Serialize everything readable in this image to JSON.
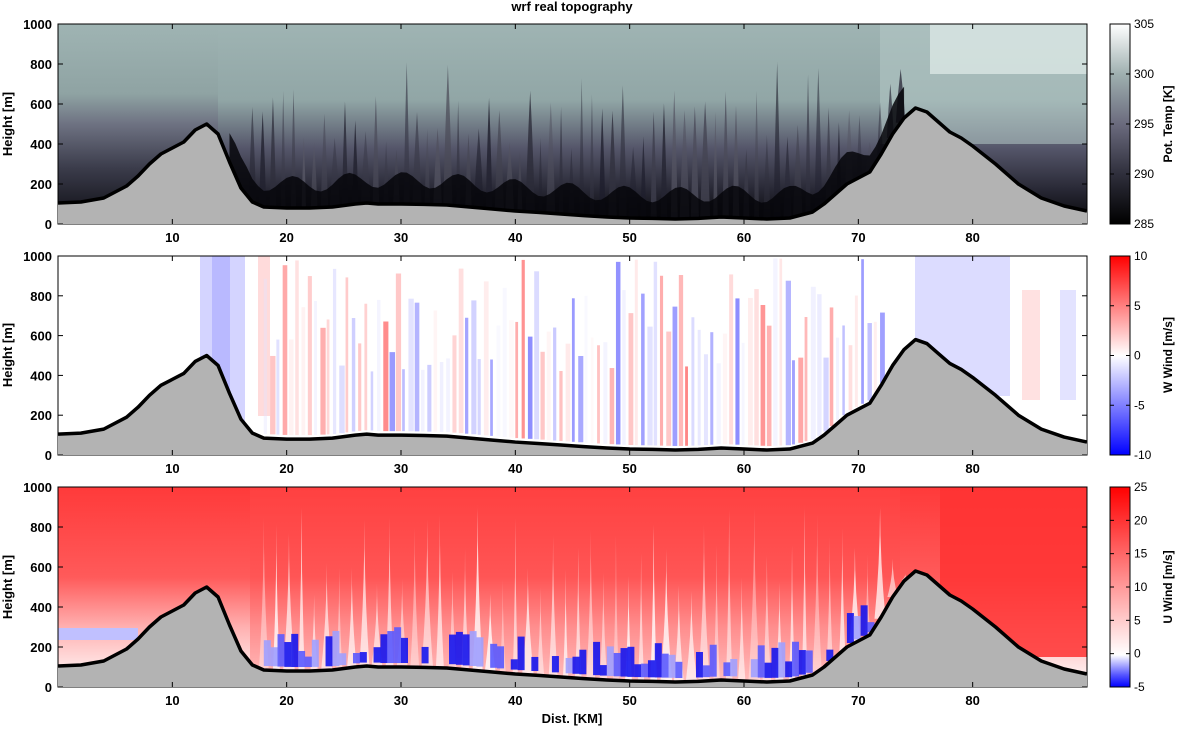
{
  "figure": {
    "title": "wrf real topography",
    "xlabel": "Dist. [KM]"
  },
  "chart_data": [
    {
      "type": "heatmap",
      "title": "wrf real topography",
      "xlabel": "",
      "ylabel": "Height [m]",
      "xlim": [
        0,
        90
      ],
      "ylim": [
        0,
        1000
      ],
      "xticks": [
        "10",
        "20",
        "30",
        "40",
        "50",
        "60",
        "70",
        "80"
      ],
      "yticks": [
        "0",
        "200",
        "400",
        "600",
        "800",
        "1000"
      ],
      "field": "potential_temperature",
      "colorbar": {
        "label": "Pot. Temp [K]",
        "range": [
          285,
          305
        ],
        "ticks": [
          "285",
          "290",
          "295",
          "300",
          "305"
        ],
        "colors": [
          "#000000",
          "#2f2f3c",
          "#6b6b7e",
          "#9fb0b0",
          "#ffffff"
        ]
      },
      "terrain": {
        "x": [
          0,
          2,
          4,
          6,
          7,
          8,
          9,
          10,
          11,
          12,
          13,
          14,
          15,
          16,
          17,
          18,
          20,
          22,
          24,
          26,
          27,
          28,
          30,
          32,
          34,
          36,
          38,
          40,
          42,
          44,
          46,
          48,
          50,
          52,
          54,
          56,
          58,
          60,
          62,
          64,
          66,
          67,
          68,
          69,
          70,
          71,
          72,
          73,
          74,
          75,
          76,
          77,
          78,
          79,
          80,
          82,
          84,
          86,
          88,
          90
        ],
        "height": [
          105,
          110,
          130,
          190,
          240,
          300,
          350,
          380,
          410,
          470,
          500,
          450,
          310,
          180,
          110,
          85,
          80,
          80,
          85,
          100,
          105,
          100,
          100,
          98,
          95,
          85,
          75,
          65,
          58,
          50,
          42,
          35,
          30,
          28,
          25,
          28,
          35,
          30,
          25,
          30,
          60,
          100,
          150,
          200,
          230,
          260,
          350,
          450,
          530,
          580,
          560,
          510,
          460,
          430,
          390,
          300,
          200,
          130,
          90,
          65
        ]
      }
    },
    {
      "type": "heatmap",
      "title": "",
      "xlabel": "",
      "ylabel": "Height [m]",
      "xlim": [
        0,
        90
      ],
      "ylim": [
        0,
        1000
      ],
      "xticks": [
        "10",
        "20",
        "30",
        "40",
        "50",
        "60",
        "70",
        "80"
      ],
      "yticks": [
        "0",
        "200",
        "400",
        "600",
        "800",
        "1000"
      ],
      "field": "w_wind",
      "colorbar": {
        "label": "W Wind [m/s]",
        "range": [
          -10,
          10
        ],
        "ticks": [
          "-10",
          "-5",
          "0",
          "5",
          "10"
        ],
        "colors": [
          "#0000ff",
          "#ffffff",
          "#ff0000"
        ]
      },
      "terrain_ref": 0
    },
    {
      "type": "heatmap",
      "title": "",
      "xlabel": "Dist. [KM]",
      "ylabel": "Height [m]",
      "xlim": [
        0,
        90
      ],
      "ylim": [
        0,
        1000
      ],
      "xticks": [
        "10",
        "20",
        "30",
        "40",
        "50",
        "60",
        "70",
        "80"
      ],
      "yticks": [
        "0",
        "200",
        "400",
        "600",
        "800",
        "1000"
      ],
      "field": "u_wind",
      "colorbar": {
        "label": "U Wind [m/s]",
        "range": [
          -5,
          25
        ],
        "ticks": [
          "-5",
          "0",
          "5",
          "10",
          "15",
          "20",
          "25"
        ],
        "colors": [
          "#0000ff",
          "#ffffff",
          "#ff0000"
        ]
      },
      "terrain_ref": 0
    }
  ]
}
